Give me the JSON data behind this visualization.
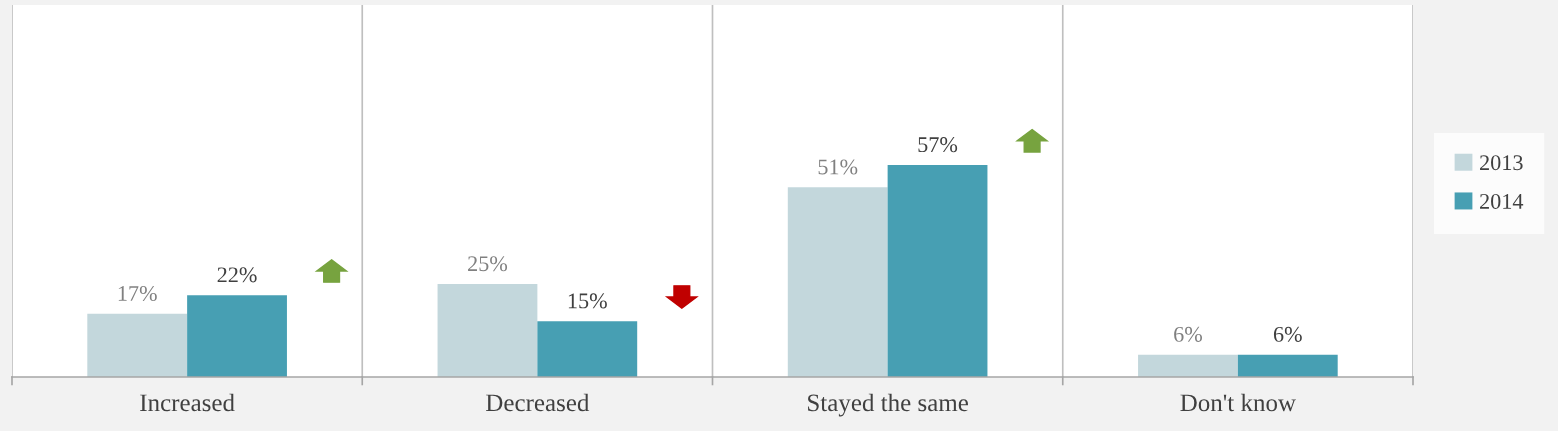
{
  "chart_data": {
    "type": "bar",
    "categories": [
      "Increased",
      "Decreased",
      "Stayed the same",
      "Don't know"
    ],
    "series": [
      {
        "name": "2013",
        "color": "#c3d7dc",
        "values": [
          17,
          25,
          51,
          6
        ],
        "value_labels": [
          "17%",
          "25%",
          "51%",
          "6%"
        ]
      },
      {
        "name": "2014",
        "color": "#479fb3",
        "values": [
          22,
          15,
          57,
          6
        ],
        "value_labels": [
          "22%",
          "15%",
          "57%",
          "6%"
        ]
      }
    ],
    "ylim": [
      0,
      100
    ],
    "tick_labels": "x",
    "grid": "x",
    "legend": "right"
  }
}
